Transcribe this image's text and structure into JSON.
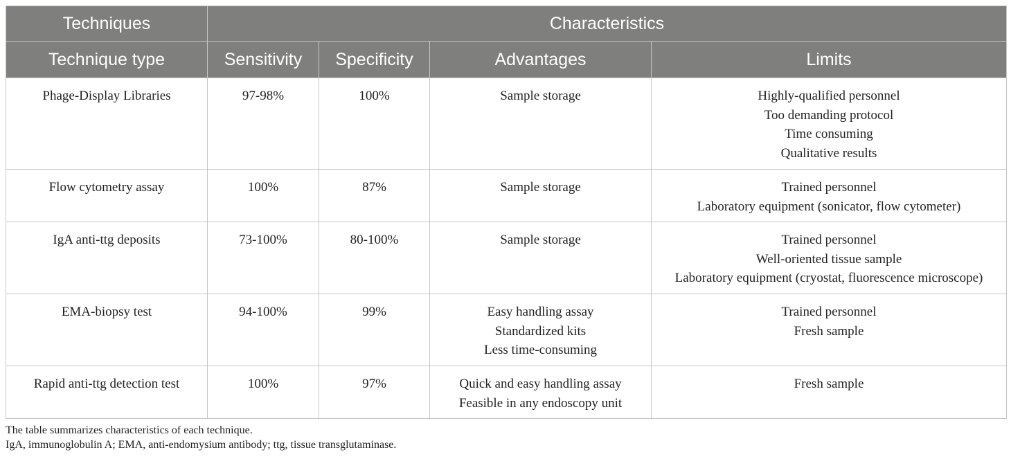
{
  "header": {
    "group_left": "Techniques",
    "group_right": "Characteristics",
    "columns": [
      "Technique type",
      "Sensitivity",
      "Specificity",
      "Advantages",
      "Limits"
    ]
  },
  "rows": [
    {
      "technique": "Phage-Display Libraries",
      "sensitivity": "97-98%",
      "specificity": "100%",
      "advantages": [
        "Sample storage"
      ],
      "limits": [
        "Highly-qualified personnel",
        "Too demanding protocol",
        "Time consuming",
        "Qualitative results"
      ]
    },
    {
      "technique": "Flow cytometry assay",
      "sensitivity": "100%",
      "specificity": "87%",
      "advantages": [
        "Sample storage"
      ],
      "limits": [
        "Trained personnel",
        "Laboratory equipment (sonicator, flow cytometer)"
      ]
    },
    {
      "technique": "IgA anti-ttg deposits",
      "sensitivity": "73-100%",
      "specificity": "80-100%",
      "advantages": [
        "Sample storage"
      ],
      "limits": [
        "Trained personnel",
        "Well-oriented tissue sample",
        "Laboratory equipment (cryostat, fluorescence microscope)"
      ]
    },
    {
      "technique": "EMA-biopsy test",
      "sensitivity": "94-100%",
      "specificity": "99%",
      "advantages": [
        "Easy handling assay",
        "Standardized kits",
        "Less time-consuming"
      ],
      "limits": [
        "Trained personnel",
        "Fresh sample"
      ]
    },
    {
      "technique": "Rapid anti-ttg detection test",
      "sensitivity": "100%",
      "specificity": "97%",
      "advantages": [
        "Quick and easy handling assay",
        "Feasible in any endoscopy unit"
      ],
      "limits": [
        "Fresh sample"
      ]
    }
  ],
  "footnotes": [
    "The table summarizes characteristics of each technique.",
    "IgA, immunoglobulin A; EMA, anti-endomysium antibody; ttg, tissue transglutaminase."
  ],
  "colors": {
    "header_bg": "#7f7f7d",
    "header_text": "#ffffff",
    "grid": "#c6c6c6",
    "body_text": "#222222"
  }
}
